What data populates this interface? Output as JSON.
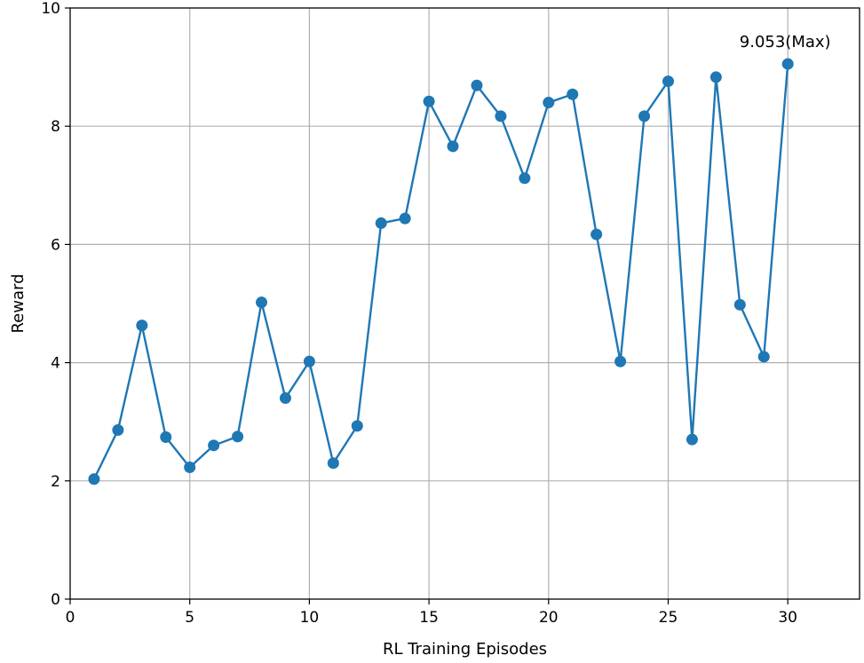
{
  "chart_data": {
    "type": "line",
    "xlabel": "RL Training Episodes",
    "ylabel": "Reward",
    "xlim": [
      0,
      33
    ],
    "ylim": [
      0,
      10
    ],
    "xticks": [
      0,
      5,
      10,
      15,
      20,
      25,
      30
    ],
    "yticks": [
      0,
      2,
      4,
      6,
      8,
      10
    ],
    "grid": true,
    "series": [
      {
        "color": "#1f77b4",
        "marker": "circle",
        "x": [
          1,
          2,
          3,
          4,
          5,
          6,
          7,
          8,
          9,
          10,
          11,
          12,
          13,
          14,
          15,
          16,
          17,
          18,
          19,
          20,
          21,
          22,
          23,
          24,
          25,
          26,
          27,
          28,
          29,
          30
        ],
        "y": [
          2.03,
          2.86,
          4.63,
          2.74,
          2.23,
          2.6,
          2.75,
          5.02,
          3.4,
          4.02,
          2.3,
          2.93,
          6.36,
          6.44,
          8.42,
          7.66,
          8.69,
          8.17,
          7.12,
          8.4,
          8.54,
          6.17,
          4.02,
          8.17,
          8.76,
          2.7,
          8.83,
          4.98,
          4.1,
          9.053
        ]
      }
    ],
    "annotations": [
      {
        "text": "9.053(Max)",
        "x": 30,
        "y": 9.053
      }
    ]
  }
}
